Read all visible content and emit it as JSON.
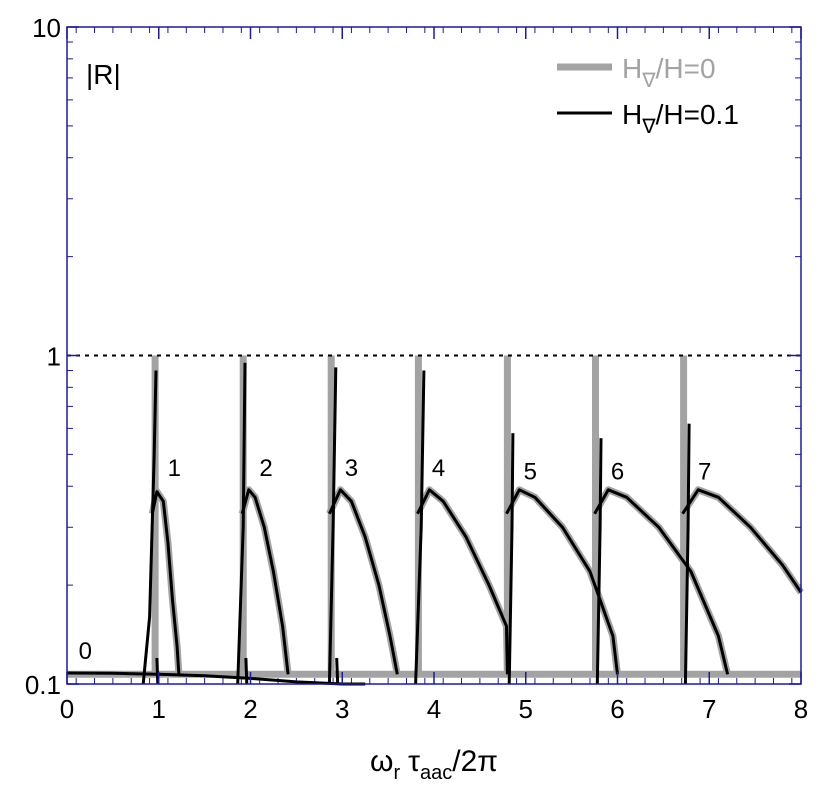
{
  "chart_data": {
    "type": "line",
    "panel_label": "|R|",
    "xlabel": {
      "omega": "ω",
      "omega_sub": "r",
      "tau": "τ",
      "tau_sub": "aac",
      "tail": "/2π"
    },
    "xlim": [
      0,
      8
    ],
    "ylim": [
      0.1,
      10
    ],
    "yscale": "log",
    "x_ticks": [
      "0",
      "1",
      "2",
      "3",
      "4",
      "5",
      "6",
      "7",
      "8"
    ],
    "y_ticks": [
      {
        "value": 0.1,
        "label": "0.1"
      },
      {
        "value": 1,
        "label": "1"
      },
      {
        "value": 10,
        "label": "10"
      }
    ],
    "reference_line": {
      "y": 1,
      "style": "dotted"
    },
    "legend": {
      "placement": "top-right",
      "entries": [
        {
          "main": "H",
          "sub": "∇",
          "rest": "/H=0",
          "color": "#a3a3a3"
        },
        {
          "main": "H",
          "sub": "∇",
          "rest": "/H=0.1",
          "color": "#000000"
        }
      ]
    },
    "mode_labels": [
      {
        "text": "0",
        "x": 0.2,
        "y": 0.119
      },
      {
        "text": "1",
        "x": 1.17,
        "y": 0.43
      },
      {
        "text": "2",
        "x": 2.17,
        "y": 0.43
      },
      {
        "text": "3",
        "x": 3.1,
        "y": 0.43
      },
      {
        "text": "4",
        "x": 4.05,
        "y": 0.43
      },
      {
        "text": "5",
        "x": 5.05,
        "y": 0.42
      },
      {
        "text": "6",
        "x": 6.0,
        "y": 0.42
      },
      {
        "text": "7",
        "x": 6.95,
        "y": 0.42
      }
    ],
    "series": [
      {
        "name": "H∇/H=0",
        "color": "#a3a3a3",
        "segments": [
          [
            [
              0,
              0.107
            ],
            [
              8,
              0.107
            ]
          ],
          [
            [
              0.96,
              0.107
            ],
            [
              0.96,
              1.0
            ]
          ],
          [
            [
              1.92,
              0.107
            ],
            [
              1.92,
              1.0
            ]
          ],
          [
            [
              2.88,
              0.107
            ],
            [
              2.88,
              1.0
            ]
          ],
          [
            [
              3.83,
              0.107
            ],
            [
              3.83,
              1.0
            ]
          ],
          [
            [
              4.8,
              0.107
            ],
            [
              4.8,
              1.0
            ]
          ],
          [
            [
              5.76,
              0.107
            ],
            [
              5.76,
              1.0
            ]
          ],
          [
            [
              6.72,
              0.107
            ],
            [
              6.72,
              1.0
            ]
          ],
          [
            [
              0.93,
              0.33
            ],
            [
              0.98,
              0.385
            ],
            [
              1.05,
              0.36
            ],
            [
              1.1,
              0.27
            ],
            [
              1.15,
              0.18
            ],
            [
              1.2,
              0.13
            ],
            [
              1.22,
              0.107
            ]
          ],
          [
            [
              1.91,
              0.33
            ],
            [
              1.98,
              0.39
            ],
            [
              2.05,
              0.37
            ],
            [
              2.15,
              0.3
            ],
            [
              2.25,
              0.22
            ],
            [
              2.35,
              0.15
            ],
            [
              2.41,
              0.107
            ]
          ],
          [
            [
              2.86,
              0.33
            ],
            [
              2.98,
              0.39
            ],
            [
              3.1,
              0.36
            ],
            [
              3.25,
              0.28
            ],
            [
              3.4,
              0.2
            ],
            [
              3.52,
              0.14
            ],
            [
              3.6,
              0.107
            ]
          ],
          [
            [
              3.82,
              0.33
            ],
            [
              3.95,
              0.39
            ],
            [
              4.1,
              0.36
            ],
            [
              4.35,
              0.28
            ],
            [
              4.6,
              0.2
            ],
            [
              4.79,
              0.15
            ],
            [
              4.8,
              0.107
            ]
          ],
          [
            [
              4.79,
              0.33
            ],
            [
              4.93,
              0.39
            ],
            [
              5.1,
              0.37
            ],
            [
              5.4,
              0.3
            ],
            [
              5.7,
              0.22
            ],
            [
              5.95,
              0.14
            ],
            [
              6.0,
              0.107
            ]
          ],
          [
            [
              5.75,
              0.33
            ],
            [
              5.9,
              0.39
            ],
            [
              6.1,
              0.37
            ],
            [
              6.45,
              0.3
            ],
            [
              6.8,
              0.22
            ],
            [
              7.1,
              0.14
            ],
            [
              7.2,
              0.107
            ]
          ],
          [
            [
              6.71,
              0.33
            ],
            [
              6.88,
              0.39
            ],
            [
              7.1,
              0.37
            ],
            [
              7.45,
              0.3
            ],
            [
              7.8,
              0.23
            ],
            [
              8.0,
              0.19
            ]
          ]
        ]
      },
      {
        "name": "H∇/H=0.1",
        "color": "#000000",
        "segments": [
          [
            [
              0,
              0.108
            ],
            [
              0.5,
              0.1078
            ],
            [
              1.0,
              0.107
            ],
            [
              1.5,
              0.106
            ],
            [
              2.0,
              0.104
            ],
            [
              2.5,
              0.1015
            ],
            [
              3.0,
              0.1
            ],
            [
              3.25,
              0.1
            ]
          ],
          [
            [
              0.83,
              0.1
            ],
            [
              0.9,
              0.16
            ],
            [
              0.95,
              0.5
            ],
            [
              0.97,
              0.9
            ]
          ],
          [
            [
              0.98,
              0.12
            ],
            [
              0.99,
              0.1
            ]
          ],
          [
            [
              1.86,
              0.1
            ],
            [
              1.92,
              0.3
            ],
            [
              1.94,
              0.95
            ]
          ],
          [
            [
              1.95,
              0.12
            ],
            [
              1.96,
              0.1
            ]
          ],
          [
            [
              2.86,
              0.1
            ],
            [
              2.9,
              0.3
            ],
            [
              2.93,
              0.92
            ]
          ],
          [
            [
              2.94,
              0.12
            ],
            [
              2.95,
              0.1
            ]
          ],
          [
            [
              3.8,
              0.1
            ],
            [
              3.86,
              0.3
            ],
            [
              3.89,
              0.9
            ]
          ],
          [
            [
              4.82,
              0.1
            ],
            [
              4.85,
              0.3
            ],
            [
              4.86,
              0.58
            ]
          ],
          [
            [
              5.78,
              0.1
            ],
            [
              5.81,
              0.3
            ],
            [
              5.82,
              0.56
            ]
          ],
          [
            [
              6.74,
              0.1
            ],
            [
              6.77,
              0.3
            ],
            [
              6.78,
              0.62
            ]
          ],
          [
            [
              0.93,
              0.33
            ],
            [
              0.98,
              0.385
            ],
            [
              1.05,
              0.36
            ],
            [
              1.1,
              0.27
            ],
            [
              1.15,
              0.18
            ],
            [
              1.2,
              0.13
            ],
            [
              1.22,
              0.107
            ]
          ],
          [
            [
              1.91,
              0.33
            ],
            [
              1.98,
              0.39
            ],
            [
              2.05,
              0.37
            ],
            [
              2.15,
              0.3
            ],
            [
              2.25,
              0.22
            ],
            [
              2.35,
              0.15
            ],
            [
              2.41,
              0.107
            ]
          ],
          [
            [
              2.86,
              0.33
            ],
            [
              2.98,
              0.39
            ],
            [
              3.1,
              0.36
            ],
            [
              3.25,
              0.28
            ],
            [
              3.4,
              0.2
            ],
            [
              3.52,
              0.14
            ],
            [
              3.6,
              0.107
            ]
          ],
          [
            [
              3.82,
              0.33
            ],
            [
              3.95,
              0.39
            ],
            [
              4.1,
              0.36
            ],
            [
              4.35,
              0.28
            ],
            [
              4.6,
              0.2
            ],
            [
              4.79,
              0.15
            ],
            [
              4.8,
              0.107
            ]
          ],
          [
            [
              4.79,
              0.33
            ],
            [
              4.93,
              0.39
            ],
            [
              5.1,
              0.37
            ],
            [
              5.4,
              0.3
            ],
            [
              5.7,
              0.22
            ],
            [
              5.95,
              0.14
            ],
            [
              6.0,
              0.107
            ]
          ],
          [
            [
              5.75,
              0.33
            ],
            [
              5.9,
              0.39
            ],
            [
              6.1,
              0.37
            ],
            [
              6.45,
              0.3
            ],
            [
              6.8,
              0.22
            ],
            [
              7.1,
              0.14
            ],
            [
              7.2,
              0.107
            ]
          ],
          [
            [
              6.71,
              0.33
            ],
            [
              6.88,
              0.39
            ],
            [
              7.1,
              0.37
            ],
            [
              7.45,
              0.3
            ],
            [
              7.8,
              0.23
            ],
            [
              8.0,
              0.19
            ]
          ]
        ]
      }
    ]
  }
}
